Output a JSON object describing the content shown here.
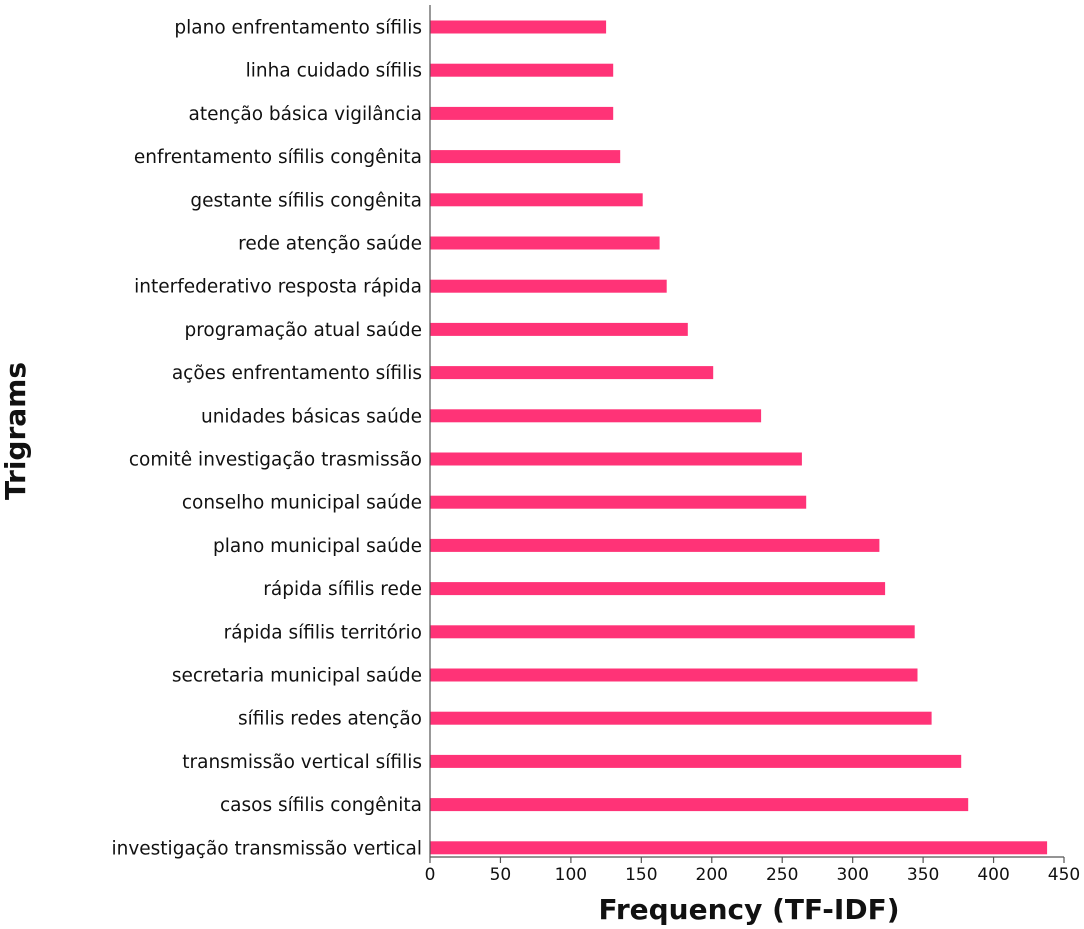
{
  "chart_data": {
    "type": "bar",
    "orientation": "horizontal",
    "title": "",
    "xlabel": "Frequency (TF-IDF)",
    "ylabel": "Trigrams",
    "xlim": [
      0,
      450
    ],
    "xticks": [
      0,
      50,
      100,
      150,
      200,
      250,
      300,
      350,
      400,
      450
    ],
    "grid": false,
    "legend": "none",
    "bar_color": "#ff3377",
    "categories": [
      "plano enfrentamento sífilis",
      "linha cuidado sífilis",
      "atenção básica vigilância",
      "enfrentamento sífilis congênita",
      "gestante sífilis congênita",
      "rede atenção saúde",
      "interfederativo resposta rápida",
      "programação atual saúde",
      "ações enfrentamento sífilis",
      "unidades básicas saúde",
      "comitê investigação trasmissão",
      "conselho municipal saúde",
      "plano municipal saúde",
      "rápida sífilis rede",
      "rápida sífilis território",
      "secretaria municipal saúde",
      "sífilis redes atenção",
      "transmissão vertical sífilis",
      "casos sífilis congênita",
      "investigação transmissão vertical"
    ],
    "values": [
      125,
      130,
      130,
      135,
      151,
      163,
      168,
      183,
      201,
      235,
      264,
      267,
      319,
      323,
      344,
      346,
      356,
      377,
      382,
      438
    ]
  }
}
